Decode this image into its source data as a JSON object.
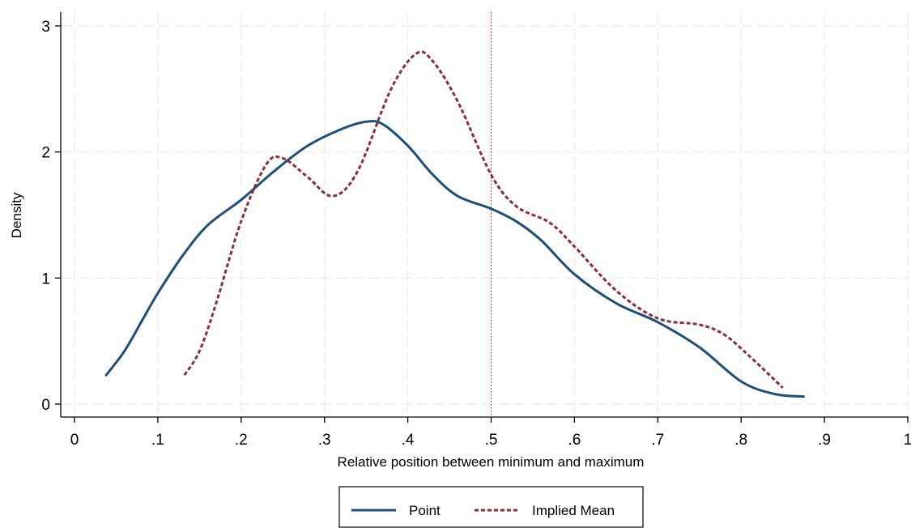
{
  "chart_data": {
    "type": "line",
    "xlabel": "Relative position between minimum and maximum",
    "ylabel": "Density",
    "xlim": [
      0,
      1
    ],
    "ylim": [
      0,
      3
    ],
    "x_ticks": [
      0,
      0.1,
      0.2,
      0.3,
      0.4,
      0.5,
      0.6,
      0.7,
      0.8,
      0.9,
      1
    ],
    "x_tick_labels": [
      "0",
      ".1",
      ".2",
      ".3",
      ".4",
      ".5",
      ".6",
      ".7",
      ".8",
      ".9",
      "1"
    ],
    "y_ticks": [
      0,
      1,
      2,
      3
    ],
    "y_tick_labels": [
      "0",
      "1",
      "2",
      "3"
    ],
    "grid": true,
    "reference_line": {
      "x": 0.5,
      "color": "#b22234",
      "style": "dotted"
    },
    "legend": {
      "placement": "bottom-center"
    },
    "series": [
      {
        "name": "Point",
        "color": "#1f4e79",
        "style": "solid",
        "points": [
          [
            0.038,
            0.23
          ],
          [
            0.06,
            0.42
          ],
          [
            0.08,
            0.65
          ],
          [
            0.1,
            0.88
          ],
          [
            0.13,
            1.18
          ],
          [
            0.16,
            1.42
          ],
          [
            0.2,
            1.62
          ],
          [
            0.24,
            1.85
          ],
          [
            0.28,
            2.05
          ],
          [
            0.32,
            2.18
          ],
          [
            0.35,
            2.24
          ],
          [
            0.37,
            2.22
          ],
          [
            0.4,
            2.05
          ],
          [
            0.43,
            1.82
          ],
          [
            0.46,
            1.65
          ],
          [
            0.5,
            1.55
          ],
          [
            0.53,
            1.45
          ],
          [
            0.56,
            1.3
          ],
          [
            0.6,
            1.03
          ],
          [
            0.65,
            0.8
          ],
          [
            0.7,
            0.65
          ],
          [
            0.75,
            0.45
          ],
          [
            0.8,
            0.18
          ],
          [
            0.84,
            0.08
          ],
          [
            0.875,
            0.06
          ]
        ]
      },
      {
        "name": "Implied Mean",
        "color": "#8b2e3a",
        "style": "dashed",
        "points": [
          [
            0.132,
            0.23
          ],
          [
            0.15,
            0.42
          ],
          [
            0.17,
            0.8
          ],
          [
            0.2,
            1.45
          ],
          [
            0.23,
            1.9
          ],
          [
            0.25,
            1.95
          ],
          [
            0.28,
            1.8
          ],
          [
            0.31,
            1.65
          ],
          [
            0.34,
            1.85
          ],
          [
            0.38,
            2.5
          ],
          [
            0.41,
            2.78
          ],
          [
            0.43,
            2.72
          ],
          [
            0.46,
            2.4
          ],
          [
            0.5,
            1.82
          ],
          [
            0.53,
            1.57
          ],
          [
            0.57,
            1.44
          ],
          [
            0.6,
            1.25
          ],
          [
            0.65,
            0.9
          ],
          [
            0.7,
            0.68
          ],
          [
            0.75,
            0.63
          ],
          [
            0.78,
            0.55
          ],
          [
            0.81,
            0.38
          ],
          [
            0.85,
            0.13
          ]
        ]
      }
    ]
  }
}
